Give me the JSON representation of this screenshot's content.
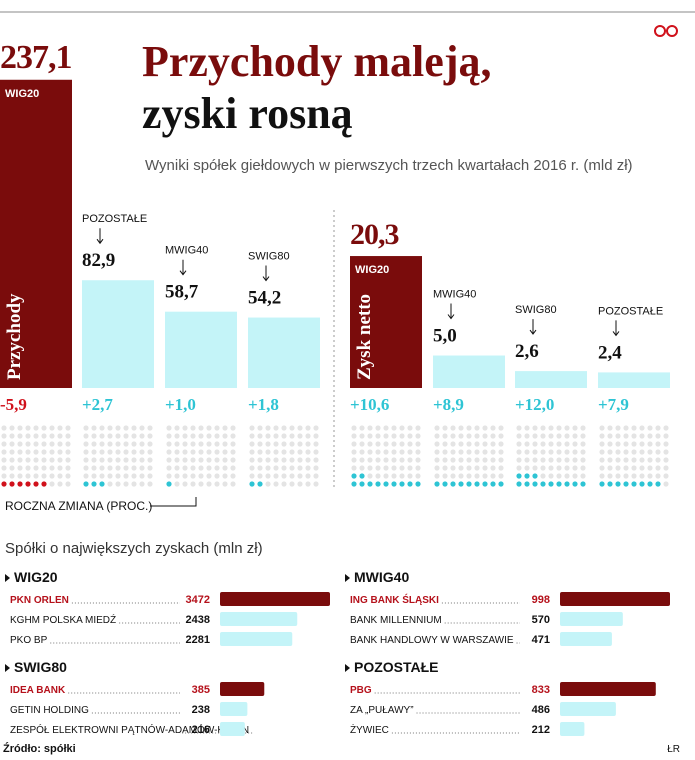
{
  "title_lines": [
    "Przychody maleją,",
    "zyski rosną"
  ],
  "subtitle": "Wyniki spółek giełdowych w pierwszych trzech kwartałach 2016 r. (mld zł)",
  "chart_data": [
    {
      "type": "bar",
      "bar_label": "Przychody",
      "categories": [
        "WIG20",
        "POZOSTAŁE",
        "MWIG40",
        "SWIG80"
      ],
      "values": [
        237.1,
        82.9,
        58.7,
        54.2
      ],
      "value_labels": [
        "237,1",
        "82,9",
        "58,7",
        "54,2"
      ],
      "changes": [
        -5.9,
        2.7,
        1.0,
        1.8
      ],
      "change_labels": [
        "-5,9",
        "+2,7",
        "+1,0",
        "+1,8"
      ],
      "highlight_color": "#7a0c0c",
      "color": "#c4f4f8",
      "negative_color": "#d0111b",
      "positive_color": "#2ec4d4"
    },
    {
      "type": "bar",
      "bar_label": "Zysk netto",
      "categories": [
        "WIG20",
        "MWIG40",
        "SWIG80",
        "POZOSTAŁE"
      ],
      "values": [
        20.3,
        5.0,
        2.6,
        2.4
      ],
      "value_labels": [
        "20,3",
        "5,0",
        "2,6",
        "2,4"
      ],
      "changes": [
        10.6,
        8.9,
        12.0,
        7.9
      ],
      "change_labels": [
        "+10,6",
        "+8,9",
        "+12,0",
        "+7,9"
      ],
      "highlight_color": "#7a0c0c",
      "color": "#c4f4f8",
      "negative_color": "#d0111b",
      "positive_color": "#2ec4d4"
    }
  ],
  "change_caption": "ROCZNA ZMIANA (PROC.)",
  "top_companies": {
    "title": "Spółki o największych zyskach (mln zł)",
    "panels": [
      {
        "name": "WIG20",
        "rows": [
          {
            "company": "PKN ORLEN",
            "value": 3472
          },
          {
            "company": "KGHM POLSKA MIEDŹ",
            "value": 2438
          },
          {
            "company": "PKO BP",
            "value": 2281
          }
        ]
      },
      {
        "name": "MWIG40",
        "rows": [
          {
            "company": "ING BANK ŚLĄSKI",
            "value": 998
          },
          {
            "company": "BANK MILLENNIUM",
            "value": 570
          },
          {
            "company": "BANK HANDLOWY W WARSZAWIE",
            "value": 471
          }
        ]
      },
      {
        "name": "SWIG80",
        "rows": [
          {
            "company": "IDEA BANK",
            "value": 385
          },
          {
            "company": "GETIN HOLDING",
            "value": 238
          },
          {
            "company": "ZESPÓŁ ELEKTROWNI PĄTNÓW-ADAMÓW-KONIN",
            "value": 216
          }
        ]
      },
      {
        "name": "POZOSTAŁE",
        "rows": [
          {
            "company": "PBG",
            "value": 833
          },
          {
            "company": "ZA „PUŁAWY”",
            "value": 486
          },
          {
            "company": "ŻYWIEC",
            "value": 212
          }
        ]
      }
    ]
  },
  "source": "Źródło: spółki",
  "author": "ŁR"
}
